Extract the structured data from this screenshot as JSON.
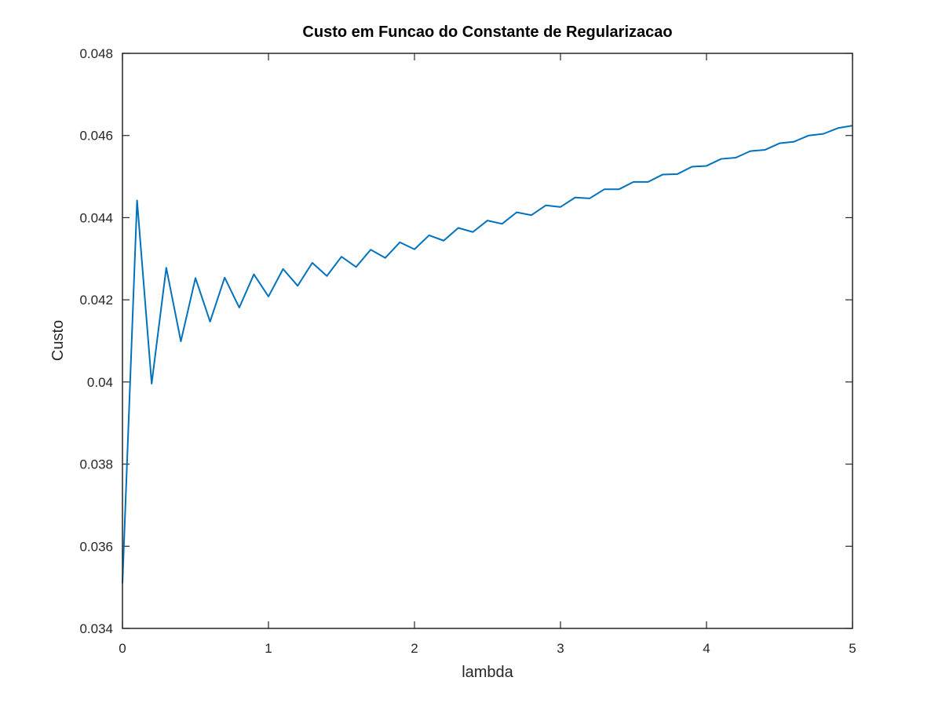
{
  "chart_data": {
    "type": "line",
    "title": "Custo em Funcao do Constante de Regularizacao",
    "xlabel": "lambda",
    "ylabel": "Custo",
    "xlim": [
      0,
      5
    ],
    "ylim": [
      0.034,
      0.048
    ],
    "xticks": [
      0,
      1,
      2,
      3,
      4,
      5
    ],
    "xtick_labels": [
      "0",
      "1",
      "2",
      "3",
      "4",
      "5"
    ],
    "yticks": [
      0.034,
      0.036,
      0.038,
      0.04,
      0.042,
      0.044,
      0.046,
      0.048
    ],
    "ytick_labels": [
      "0.034",
      "0.036",
      "0.038",
      "0.04",
      "0.042",
      "0.044",
      "0.046",
      "0.048"
    ],
    "grid": false,
    "line_color": "#0072bd",
    "series": [
      {
        "x": [
          0,
          0.1,
          0.2,
          0.3,
          0.4,
          0.5,
          0.6,
          0.7,
          0.8,
          0.9,
          1.0,
          1.1,
          1.2,
          1.3,
          1.4,
          1.5,
          1.6,
          1.7,
          1.8,
          1.9,
          2.0,
          2.1,
          2.2,
          2.3,
          2.4,
          2.5,
          2.6,
          2.7,
          2.8,
          2.9,
          3.0,
          3.1,
          3.2,
          3.3,
          3.4,
          3.5,
          3.6,
          3.7,
          3.8,
          3.9,
          4.0,
          4.1,
          4.2,
          4.3,
          4.4,
          4.5,
          4.6,
          4.7,
          4.8,
          4.9,
          5.0
        ],
        "values": [
          0.0351,
          0.04442,
          0.03996,
          0.04278,
          0.04099,
          0.04253,
          0.04147,
          0.04254,
          0.04181,
          0.04262,
          0.04208,
          0.04275,
          0.04234,
          0.0429,
          0.04258,
          0.04305,
          0.0428,
          0.04322,
          0.04302,
          0.0434,
          0.04323,
          0.04357,
          0.04344,
          0.04375,
          0.04365,
          0.04393,
          0.04385,
          0.04413,
          0.04406,
          0.0443,
          0.04426,
          0.04449,
          0.04447,
          0.04469,
          0.04469,
          0.04487,
          0.04487,
          0.04505,
          0.04506,
          0.04524,
          0.04526,
          0.04543,
          0.04546,
          0.04562,
          0.04565,
          0.04581,
          0.04585,
          0.046,
          0.04604,
          0.04618,
          0.04624
        ]
      }
    ]
  }
}
